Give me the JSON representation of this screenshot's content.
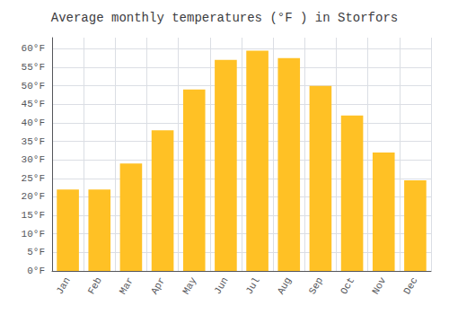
{
  "chart_data": {
    "type": "bar",
    "title": "Average monthly temperatures (°F ) in Storfors",
    "categories": [
      "Jan",
      "Feb",
      "Mar",
      "Apr",
      "May",
      "Jun",
      "Jul",
      "Aug",
      "Sep",
      "Oct",
      "Nov",
      "Dec"
    ],
    "values": [
      22,
      22,
      29,
      38,
      49,
      57,
      59.5,
      57.5,
      50,
      42,
      32,
      24.5
    ],
    "color": "#FFC125",
    "ylim": [
      0,
      63
    ],
    "yticks": [
      {
        "value": 0,
        "label": "0°F"
      },
      {
        "value": 5,
        "label": "5°F"
      },
      {
        "value": 10,
        "label": "10°F"
      },
      {
        "value": 15,
        "label": "15°F"
      },
      {
        "value": 20,
        "label": "20°F"
      },
      {
        "value": 25,
        "label": "25°F"
      },
      {
        "value": 30,
        "label": "30°F"
      },
      {
        "value": 35,
        "label": "35°F"
      },
      {
        "value": 40,
        "label": "40°F"
      },
      {
        "value": 45,
        "label": "45°F"
      },
      {
        "value": 50,
        "label": "50°F"
      },
      {
        "value": 55,
        "label": "55°F"
      },
      {
        "value": 60,
        "label": "60°F"
      }
    ],
    "grid": true
  }
}
